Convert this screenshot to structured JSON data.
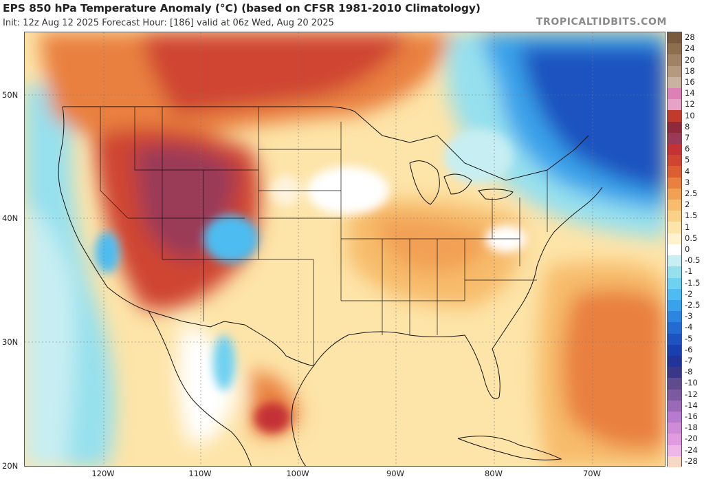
{
  "header": {
    "title": "EPS 850 hPa Temperature Anomaly (°C) (based on CFSR 1981-2010 Climatology)",
    "subtitle": "Init: 12z Aug 12 2025   Forecast Hour: [186]   valid at 06z Wed, Aug 20 2025",
    "brand": "TROPICALTIDBITS.COM"
  },
  "map": {
    "lat_labels": [
      "50N",
      "40N",
      "30N",
      "20N"
    ],
    "lon_labels": [
      "120W",
      "110W",
      "100W",
      "90W",
      "80W",
      "70W"
    ]
  },
  "colorbar": {
    "labels": [
      "28",
      "24",
      "20",
      "18",
      "16",
      "14",
      "12",
      "10",
      "8",
      "7",
      "6",
      "5",
      "4",
      "3",
      "2.5",
      "2",
      "1.5",
      "1",
      "0.5",
      "0",
      "-0.5",
      "-1",
      "-1.5",
      "-2",
      "-2.5",
      "-3",
      "-4",
      "-5",
      "-6",
      "-7",
      "-8",
      "-10",
      "-12",
      "-14",
      "-16",
      "-18",
      "-20",
      "-24",
      "-28"
    ],
    "colors": [
      "#7a5a3c",
      "#8e6e4e",
      "#a08264",
      "#b69a80",
      "#c9b2a0",
      "#dd80b8",
      "#e8a2c8",
      "#c23a2c",
      "#8e2a3a",
      "#9a3a58",
      "#c43236",
      "#cf4530",
      "#dc5e32",
      "#e98040",
      "#f2a054",
      "#f7bc6c",
      "#fad187",
      "#fde4a8",
      "#fef3ce",
      "#ffffff",
      "#c7eef2",
      "#96e0ee",
      "#6fd0f0",
      "#4ebcf0",
      "#3aa2ea",
      "#2c86e0",
      "#236ad2",
      "#1d52c0",
      "#1a3fae",
      "#22349a",
      "#3a3688",
      "#5f4b8e",
      "#7b5aa0",
      "#9a6ab8",
      "#b87ad0",
      "#cf8ad8",
      "#e29ae0",
      "#efb6e8",
      "#f7d8c4"
    ]
  }
}
